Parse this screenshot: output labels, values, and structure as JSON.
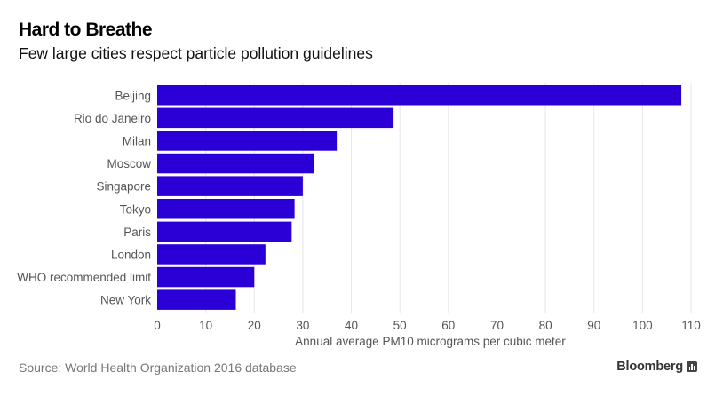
{
  "header": {
    "title": "Hard to Breathe",
    "subtitle": "Few large cities respect particle pollution guidelines"
  },
  "footer": {
    "source": "Source: World Health Organization 2016 database",
    "brand": "Bloomberg",
    "brand_icon": "bar-chart-icon"
  },
  "colors": {
    "bar": "#2a00d6",
    "gridline": "#e6e6ec",
    "text_muted": "#555555"
  },
  "chart_data": {
    "type": "bar",
    "orientation": "horizontal",
    "title": "Hard to Breathe",
    "subtitle": "Few large cities respect particle pollution guidelines",
    "categories": [
      "Beijing",
      "Rio do Janeiro",
      "Milan",
      "Moscow",
      "Singapore",
      "Tokyo",
      "Paris",
      "London",
      "WHO recommended limit",
      "New York"
    ],
    "values": [
      108,
      48.7,
      37,
      32.4,
      30,
      28.3,
      27.7,
      22.3,
      20,
      16.2
    ],
    "xlabel": "Annual average PM10 micrograms per cubic meter",
    "ylabel": "",
    "xlim": [
      0,
      110
    ],
    "xticks": [
      0,
      10,
      20,
      30,
      40,
      50,
      60,
      70,
      80,
      90,
      100,
      110
    ],
    "xtick_labels": [
      "0",
      "10",
      "20",
      "30",
      "40",
      "50",
      "60",
      "70",
      "80",
      "90",
      "100",
      "110"
    ],
    "grid": "vertical",
    "legend": "none",
    "source": "Source: World Health Organization 2016 database"
  }
}
